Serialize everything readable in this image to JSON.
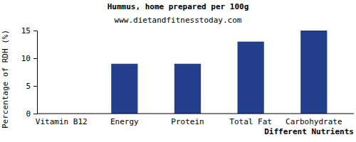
{
  "chart_data": {
    "type": "bar",
    "title": "Hummus, home prepared per 100g",
    "subtitle": "www.dietandfitnesstoday.com",
    "x_label": "Different Nutrients",
    "y_label": "Percentage of RDH (%)",
    "categories": [
      "Vitamin B12",
      "Energy",
      "Protein",
      "Total Fat",
      "Carbohydrate"
    ],
    "values": [
      0,
      9,
      9,
      13,
      15
    ],
    "color": "#233e8b",
    "ylim": [
      0,
      15
    ],
    "yticks": [
      0,
      5,
      10,
      15
    ],
    "grid": false
  }
}
